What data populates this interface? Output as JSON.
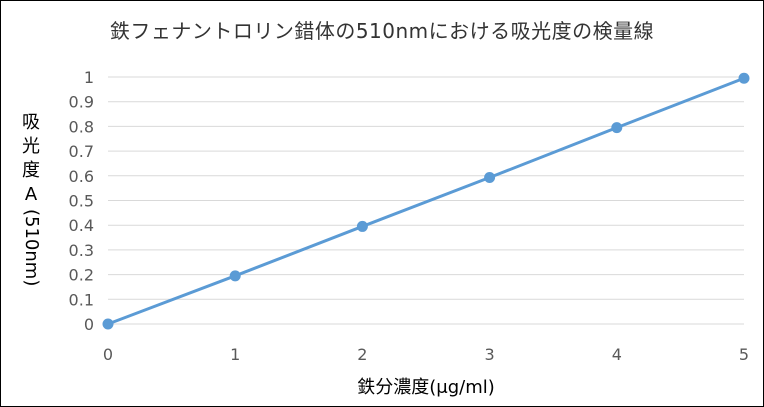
{
  "chart_data": {
    "type": "line",
    "title": "鉄フェナントロリン錯体の510nmにおける吸光度の検量線",
    "xlabel": "鉄分濃度(μg/ml)",
    "ylabel": "吸光度A(510nm)",
    "ylabel_parts": {
      "stacked": [
        "吸",
        "光",
        "度",
        "A"
      ],
      "rotated": "(510nm)"
    },
    "xlim": [
      0,
      5
    ],
    "ylim": [
      0,
      1
    ],
    "x_ticks": [
      "0",
      "1",
      "2",
      "3",
      "4",
      "5"
    ],
    "y_ticks": [
      "0",
      "0.1",
      "0.2",
      "0.3",
      "0.4",
      "0.5",
      "0.6",
      "0.7",
      "0.8",
      "0.9",
      "1"
    ],
    "grid": true,
    "legend": "none",
    "series": [
      {
        "x": [
          0,
          1,
          2,
          3,
          4,
          5
        ],
        "values": [
          0,
          0.195,
          0.395,
          0.593,
          0.795,
          0.995
        ],
        "color": "#5b9bd5"
      }
    ]
  }
}
